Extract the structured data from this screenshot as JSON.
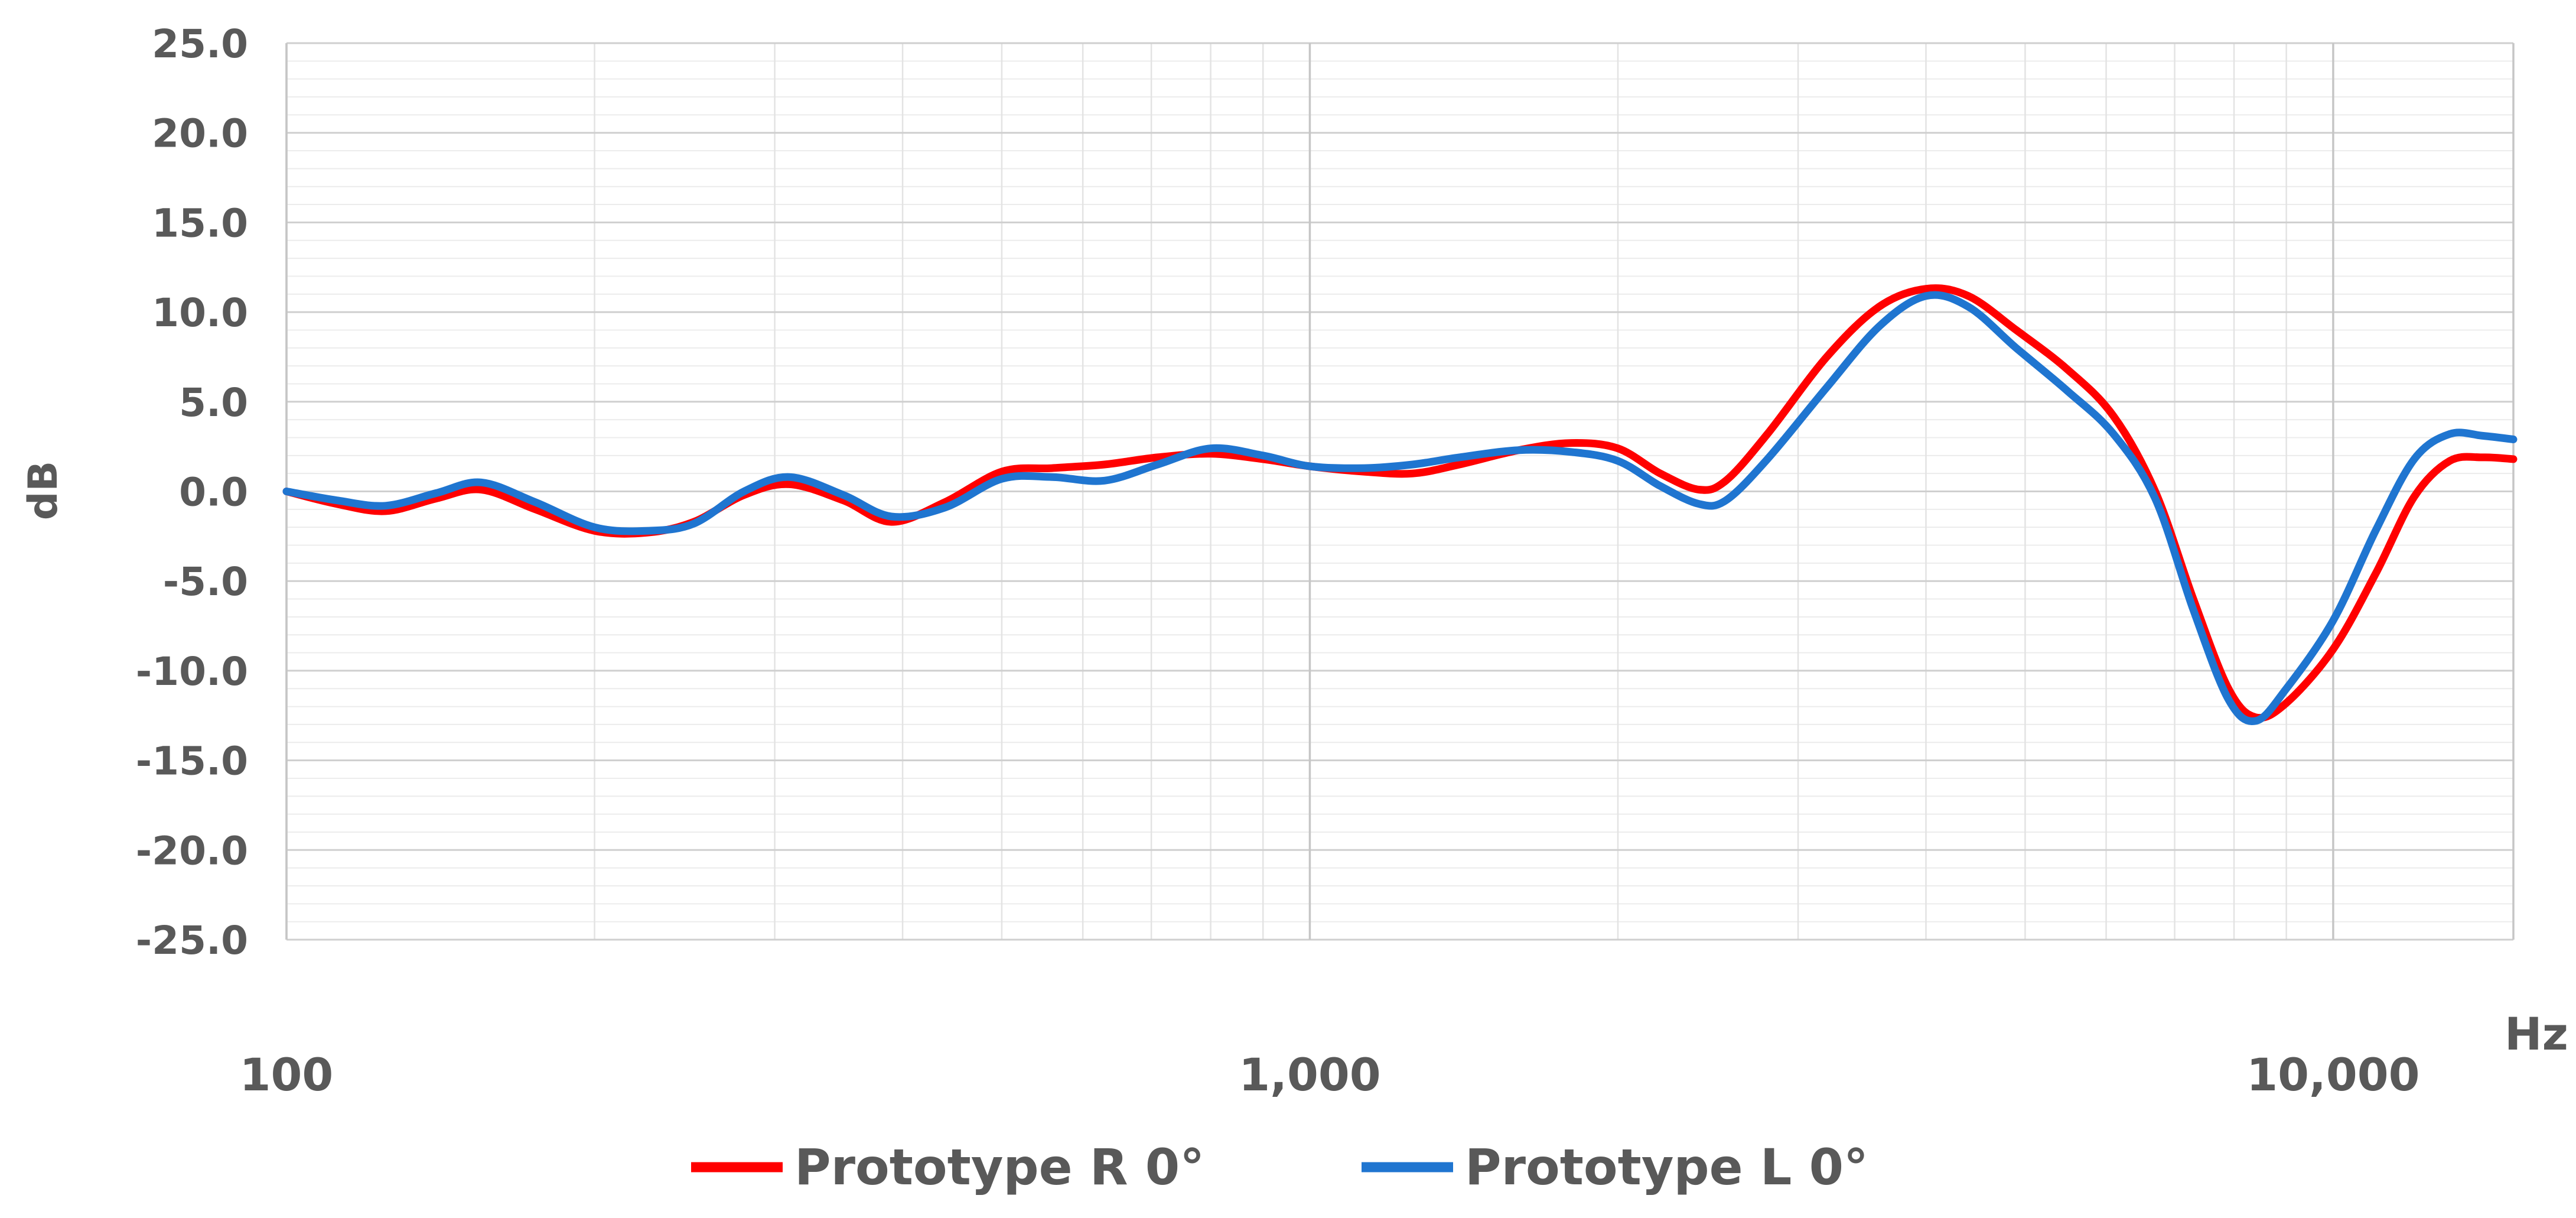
{
  "chart_data": {
    "type": "line",
    "title": "",
    "xlabel": "Hz",
    "ylabel": "dB",
    "x_scale": "log",
    "xlim": [
      100,
      15000
    ],
    "ylim": [
      -25,
      25
    ],
    "x_ticks": [
      {
        "value": 100,
        "label": "100"
      },
      {
        "value": 1000,
        "label": "1,000"
      },
      {
        "value": 10000,
        "label": "10,000"
      }
    ],
    "y_ticks": [
      {
        "value": 25,
        "label": "25.0"
      },
      {
        "value": 20,
        "label": "20.0"
      },
      {
        "value": 15,
        "label": "15.0"
      },
      {
        "value": 10,
        "label": "10.0"
      },
      {
        "value": 5,
        "label": "5.0"
      },
      {
        "value": 0,
        "label": "0.0"
      },
      {
        "value": -5,
        "label": "-5.0"
      },
      {
        "value": -10,
        "label": "-10.0"
      },
      {
        "value": -15,
        "label": "-15.0"
      },
      {
        "value": -20,
        "label": "-20.0"
      },
      {
        "value": -25,
        "label": "-25.0"
      }
    ],
    "grid": true,
    "legend_position": "bottom",
    "series": [
      {
        "name": "Prototype R 0°",
        "color": "#ff0000",
        "points": [
          [
            100,
            0.0
          ],
          [
            112,
            -0.7
          ],
          [
            125,
            -1.1
          ],
          [
            140,
            -0.4
          ],
          [
            155,
            0.1
          ],
          [
            175,
            -1.0
          ],
          [
            200,
            -2.2
          ],
          [
            225,
            -2.3
          ],
          [
            250,
            -1.7
          ],
          [
            280,
            -0.2
          ],
          [
            310,
            0.4
          ],
          [
            350,
            -0.5
          ],
          [
            390,
            -1.7
          ],
          [
            440,
            -0.6
          ],
          [
            500,
            1.1
          ],
          [
            560,
            1.3
          ],
          [
            630,
            1.5
          ],
          [
            710,
            1.9
          ],
          [
            800,
            2.1
          ],
          [
            900,
            1.8
          ],
          [
            1000,
            1.4
          ],
          [
            1130,
            1.1
          ],
          [
            1260,
            1.0
          ],
          [
            1400,
            1.5
          ],
          [
            1600,
            2.3
          ],
          [
            1800,
            2.7
          ],
          [
            2000,
            2.4
          ],
          [
            2200,
            1.0
          ],
          [
            2400,
            0.1
          ],
          [
            2550,
            0.6
          ],
          [
            2800,
            3.2
          ],
          [
            3200,
            7.5
          ],
          [
            3600,
            10.3
          ],
          [
            4000,
            11.3
          ],
          [
            4400,
            10.9
          ],
          [
            4900,
            9.0
          ],
          [
            5500,
            6.8
          ],
          [
            6100,
            4.2
          ],
          [
            6700,
            0.0
          ],
          [
            7300,
            -6.0
          ],
          [
            7900,
            -11.0
          ],
          [
            8400,
            -12.6
          ],
          [
            9000,
            -11.8
          ],
          [
            10000,
            -8.8
          ],
          [
            11000,
            -4.6
          ],
          [
            12000,
            -0.3
          ],
          [
            13000,
            1.7
          ],
          [
            14000,
            1.9
          ],
          [
            15000,
            1.8
          ]
        ]
      },
      {
        "name": "Prototype L 0°",
        "color": "#1f75d0",
        "points": [
          [
            100,
            0.0
          ],
          [
            112,
            -0.5
          ],
          [
            125,
            -0.8
          ],
          [
            140,
            -0.1
          ],
          [
            155,
            0.5
          ],
          [
            175,
            -0.6
          ],
          [
            200,
            -2.0
          ],
          [
            225,
            -2.2
          ],
          [
            250,
            -1.8
          ],
          [
            280,
            0.0
          ],
          [
            310,
            0.8
          ],
          [
            350,
            -0.2
          ],
          [
            390,
            -1.4
          ],
          [
            440,
            -0.9
          ],
          [
            500,
            0.7
          ],
          [
            560,
            0.8
          ],
          [
            630,
            0.6
          ],
          [
            710,
            1.5
          ],
          [
            800,
            2.4
          ],
          [
            900,
            2.0
          ],
          [
            1000,
            1.4
          ],
          [
            1130,
            1.3
          ],
          [
            1260,
            1.5
          ],
          [
            1400,
            1.9
          ],
          [
            1600,
            2.3
          ],
          [
            1800,
            2.2
          ],
          [
            2000,
            1.7
          ],
          [
            2200,
            0.3
          ],
          [
            2400,
            -0.7
          ],
          [
            2550,
            -0.5
          ],
          [
            2800,
            1.8
          ],
          [
            3200,
            5.8
          ],
          [
            3600,
            9.2
          ],
          [
            4000,
            10.9
          ],
          [
            4400,
            10.3
          ],
          [
            4900,
            8.0
          ],
          [
            5500,
            5.6
          ],
          [
            6100,
            3.2
          ],
          [
            6700,
            -0.4
          ],
          [
            7300,
            -6.6
          ],
          [
            7900,
            -11.6
          ],
          [
            8400,
            -12.8
          ],
          [
            9000,
            -11.0
          ],
          [
            10000,
            -7.2
          ],
          [
            11000,
            -2.2
          ],
          [
            12000,
            1.8
          ],
          [
            13000,
            3.2
          ],
          [
            14000,
            3.1
          ],
          [
            15000,
            2.9
          ]
        ]
      }
    ]
  }
}
